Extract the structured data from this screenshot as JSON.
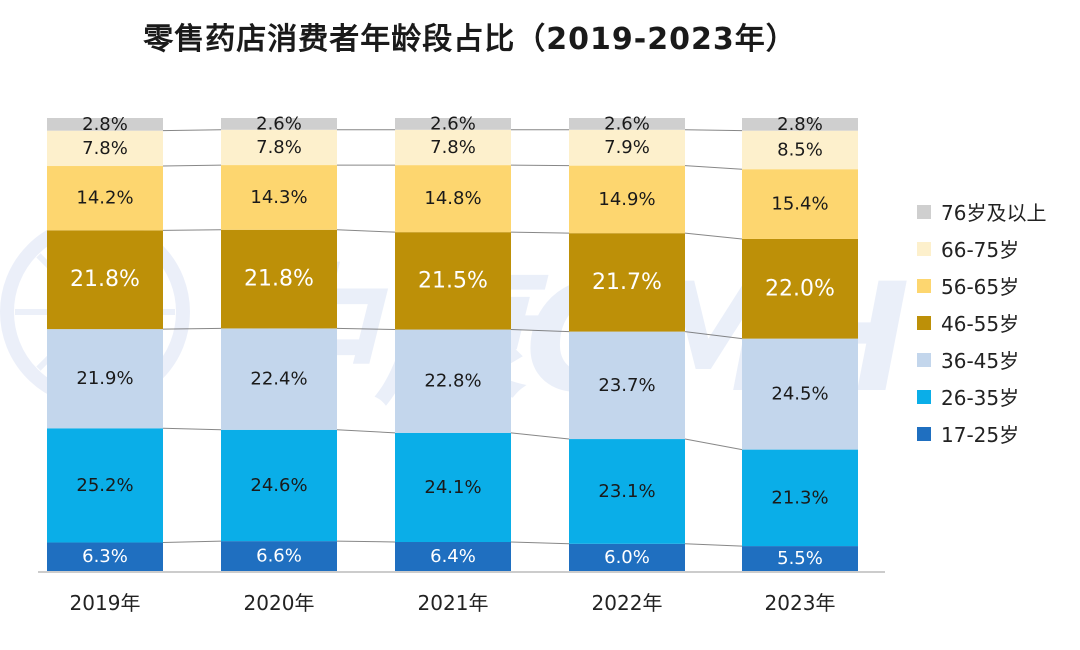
{
  "chart_data": {
    "type": "bar",
    "stacked": true,
    "normalized": true,
    "title": "零售药店消费者年龄段占比（2019-2023年）",
    "categories": [
      "2019年",
      "2020年",
      "2021年",
      "2022年",
      "2023年"
    ],
    "series": [
      {
        "name": "17-25岁",
        "color": "#1f6fc0",
        "label_color": "#ffffff",
        "values": [
          6.3,
          6.6,
          6.4,
          6.0,
          5.5
        ]
      },
      {
        "name": "26-35岁",
        "color": "#0aaee8",
        "label_color": "#1a1a1a",
        "values": [
          25.2,
          24.6,
          24.1,
          23.1,
          21.3
        ]
      },
      {
        "name": "36-45岁",
        "color": "#c3d6ec",
        "label_color": "#1a1a1a",
        "values": [
          21.9,
          22.4,
          22.8,
          23.7,
          24.5
        ]
      },
      {
        "name": "46-55岁",
        "color": "#bd9008",
        "label_color": "#ffffff",
        "values": [
          21.8,
          21.8,
          21.5,
          21.7,
          22.0
        ]
      },
      {
        "name": "56-65岁",
        "color": "#fdd66f",
        "label_color": "#1a1a1a",
        "values": [
          14.2,
          14.3,
          14.8,
          14.9,
          15.4
        ]
      },
      {
        "name": "66-75岁",
        "color": "#fdf0cc",
        "label_color": "#1a1a1a",
        "values": [
          7.8,
          7.8,
          7.8,
          7.9,
          8.5
        ]
      },
      {
        "name": "76岁及以上",
        "color": "#cfcfcf",
        "label_color": "#1a1a1a",
        "values": [
          2.8,
          2.6,
          2.6,
          2.6,
          2.8
        ]
      }
    ],
    "value_format": "{v}%",
    "legend_position": "right",
    "legend_order": "reverse",
    "grid": false,
    "connector_lines": true
  },
  "watermark": {
    "text": "中康CMH",
    "color": "#8fa8e0"
  }
}
